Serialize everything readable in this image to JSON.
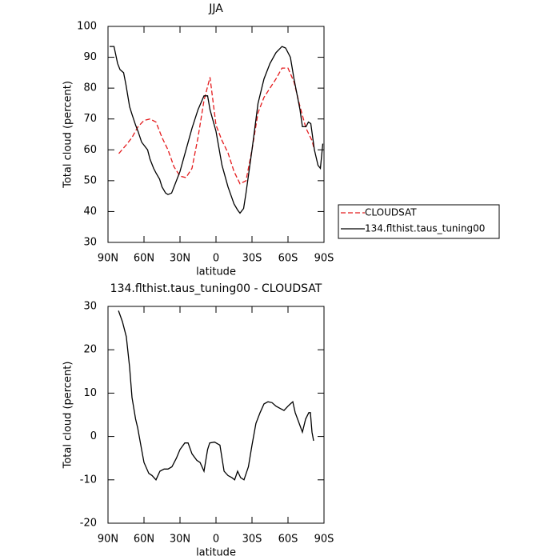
{
  "chart_data": [
    {
      "type": "line",
      "title": "JJA",
      "xlabel": "latitude",
      "ylabel": "Total cloud (percent)",
      "xlim": [
        90,
        -90
      ],
      "ylim": [
        30,
        100
      ],
      "xticks": [
        {
          "value": 90,
          "label": "90N"
        },
        {
          "value": 60,
          "label": "60N"
        },
        {
          "value": 30,
          "label": "30N"
        },
        0,
        {
          "value": -30,
          "label": "30S"
        },
        {
          "value": -60,
          "label": "60S"
        },
        {
          "value": -90,
          "label": "90S"
        }
      ],
      "yticks": [
        30,
        40,
        50,
        60,
        70,
        80,
        90,
        100
      ],
      "legend": "right",
      "series": [
        {
          "name": "CLOUDSAT",
          "color": "#e41a1c",
          "linestyle": "dashed",
          "x": [
            81,
            75,
            70,
            65,
            60,
            55,
            50,
            45,
            40,
            35,
            30,
            25,
            20,
            15,
            10,
            5,
            0,
            -5,
            -10,
            -15,
            -20,
            -25,
            -30,
            -35,
            -40,
            -45,
            -50,
            -55,
            -60,
            -65,
            -70,
            -75,
            -80,
            -82
          ],
          "values": [
            58.8,
            61.5,
            64,
            67.5,
            69.5,
            70,
            69,
            64,
            60,
            54.5,
            51.5,
            51,
            54,
            64,
            76,
            83.5,
            68,
            63,
            59,
            53,
            49,
            50,
            60,
            72,
            77,
            80,
            83,
            86.5,
            86.5,
            82,
            74,
            67,
            63,
            60
          ]
        },
        {
          "name": "134.flthist.taus_tuning00",
          "color": "#000000",
          "linestyle": "solid",
          "x": [
            88.7,
            85,
            82,
            80,
            77,
            75,
            72,
            70,
            67,
            65,
            62,
            60,
            57,
            55,
            52,
            50,
            47,
            45,
            42,
            40,
            37,
            35,
            30,
            25,
            20,
            15,
            10,
            7,
            5,
            0,
            -5,
            -10,
            -15,
            -18,
            -20,
            -23,
            -25,
            -30,
            -35,
            -40,
            -45,
            -50,
            -55,
            -58,
            -62,
            -65,
            -70,
            -72,
            -75,
            -77,
            -79,
            -82,
            -85,
            -87,
            -89
          ],
          "values": [
            93.5,
            93.5,
            88,
            86,
            85,
            81,
            74,
            71.5,
            68,
            66,
            62.5,
            61.5,
            60,
            57,
            54,
            52.5,
            50.5,
            48,
            46,
            45.5,
            46,
            48,
            53,
            60,
            67,
            73,
            77.5,
            77.5,
            73,
            66,
            55,
            48,
            42.5,
            40.5,
            39.5,
            41,
            46,
            60,
            75,
            83,
            88,
            91.5,
            93.5,
            93,
            90,
            83,
            73,
            67.5,
            67.5,
            69,
            68.5,
            60,
            55,
            54,
            62
          ]
        }
      ]
    },
    {
      "type": "line",
      "title": "134.flthist.taus_tuning00 - CLOUDSAT",
      "xlabel": "latitude",
      "ylabel": "Total cloud (percent)",
      "xlim": [
        90,
        -90
      ],
      "ylim": [
        -20,
        30
      ],
      "xticks": [
        {
          "value": 90,
          "label": "90N"
        },
        {
          "value": 60,
          "label": "60N"
        },
        {
          "value": 30,
          "label": "30N"
        },
        0,
        {
          "value": -30,
          "label": "30S"
        },
        {
          "value": -60,
          "label": "60S"
        },
        {
          "value": -90,
          "label": "90S"
        }
      ],
      "yticks": [
        -20,
        -10,
        0,
        10,
        20,
        30
      ],
      "series": [
        {
          "color": "#000000",
          "linestyle": "solid",
          "x": [
            81.3,
            78,
            74.7,
            72,
            70,
            67,
            65.3,
            62,
            60,
            56,
            53.3,
            50,
            46.7,
            43.3,
            40,
            36.7,
            33,
            30,
            26,
            23.3,
            20,
            16,
            13.3,
            10,
            7,
            5.3,
            1.3,
            -3.3,
            -6.7,
            -10,
            -13.3,
            -15.5,
            -18,
            -20.5,
            -23.3,
            -27,
            -30,
            -33.3,
            -36.7,
            -40,
            -43.3,
            -46.7,
            -50,
            -53.3,
            -56.7,
            -60,
            -62,
            -64,
            -66,
            -68,
            -70,
            -72,
            -74.7,
            -77.3,
            -78.7,
            -80,
            -81.3
          ],
          "values": [
            29,
            26.5,
            23,
            16,
            9,
            4,
            2,
            -3,
            -6,
            -8.5,
            -9,
            -10,
            -8,
            -7.5,
            -7.5,
            -7,
            -5,
            -3,
            -1.5,
            -1.5,
            -4,
            -5.5,
            -6,
            -8,
            -3,
            -1.5,
            -1.3,
            -2,
            -8,
            -9,
            -9.5,
            -10,
            -8,
            -9.5,
            -10,
            -7,
            -2,
            3,
            5.5,
            7.5,
            8,
            7.8,
            7,
            6.5,
            6,
            7,
            7.5,
            8,
            5.5,
            4,
            2.5,
            1,
            4,
            5.5,
            5.5,
            1,
            -1
          ]
        }
      ]
    }
  ]
}
